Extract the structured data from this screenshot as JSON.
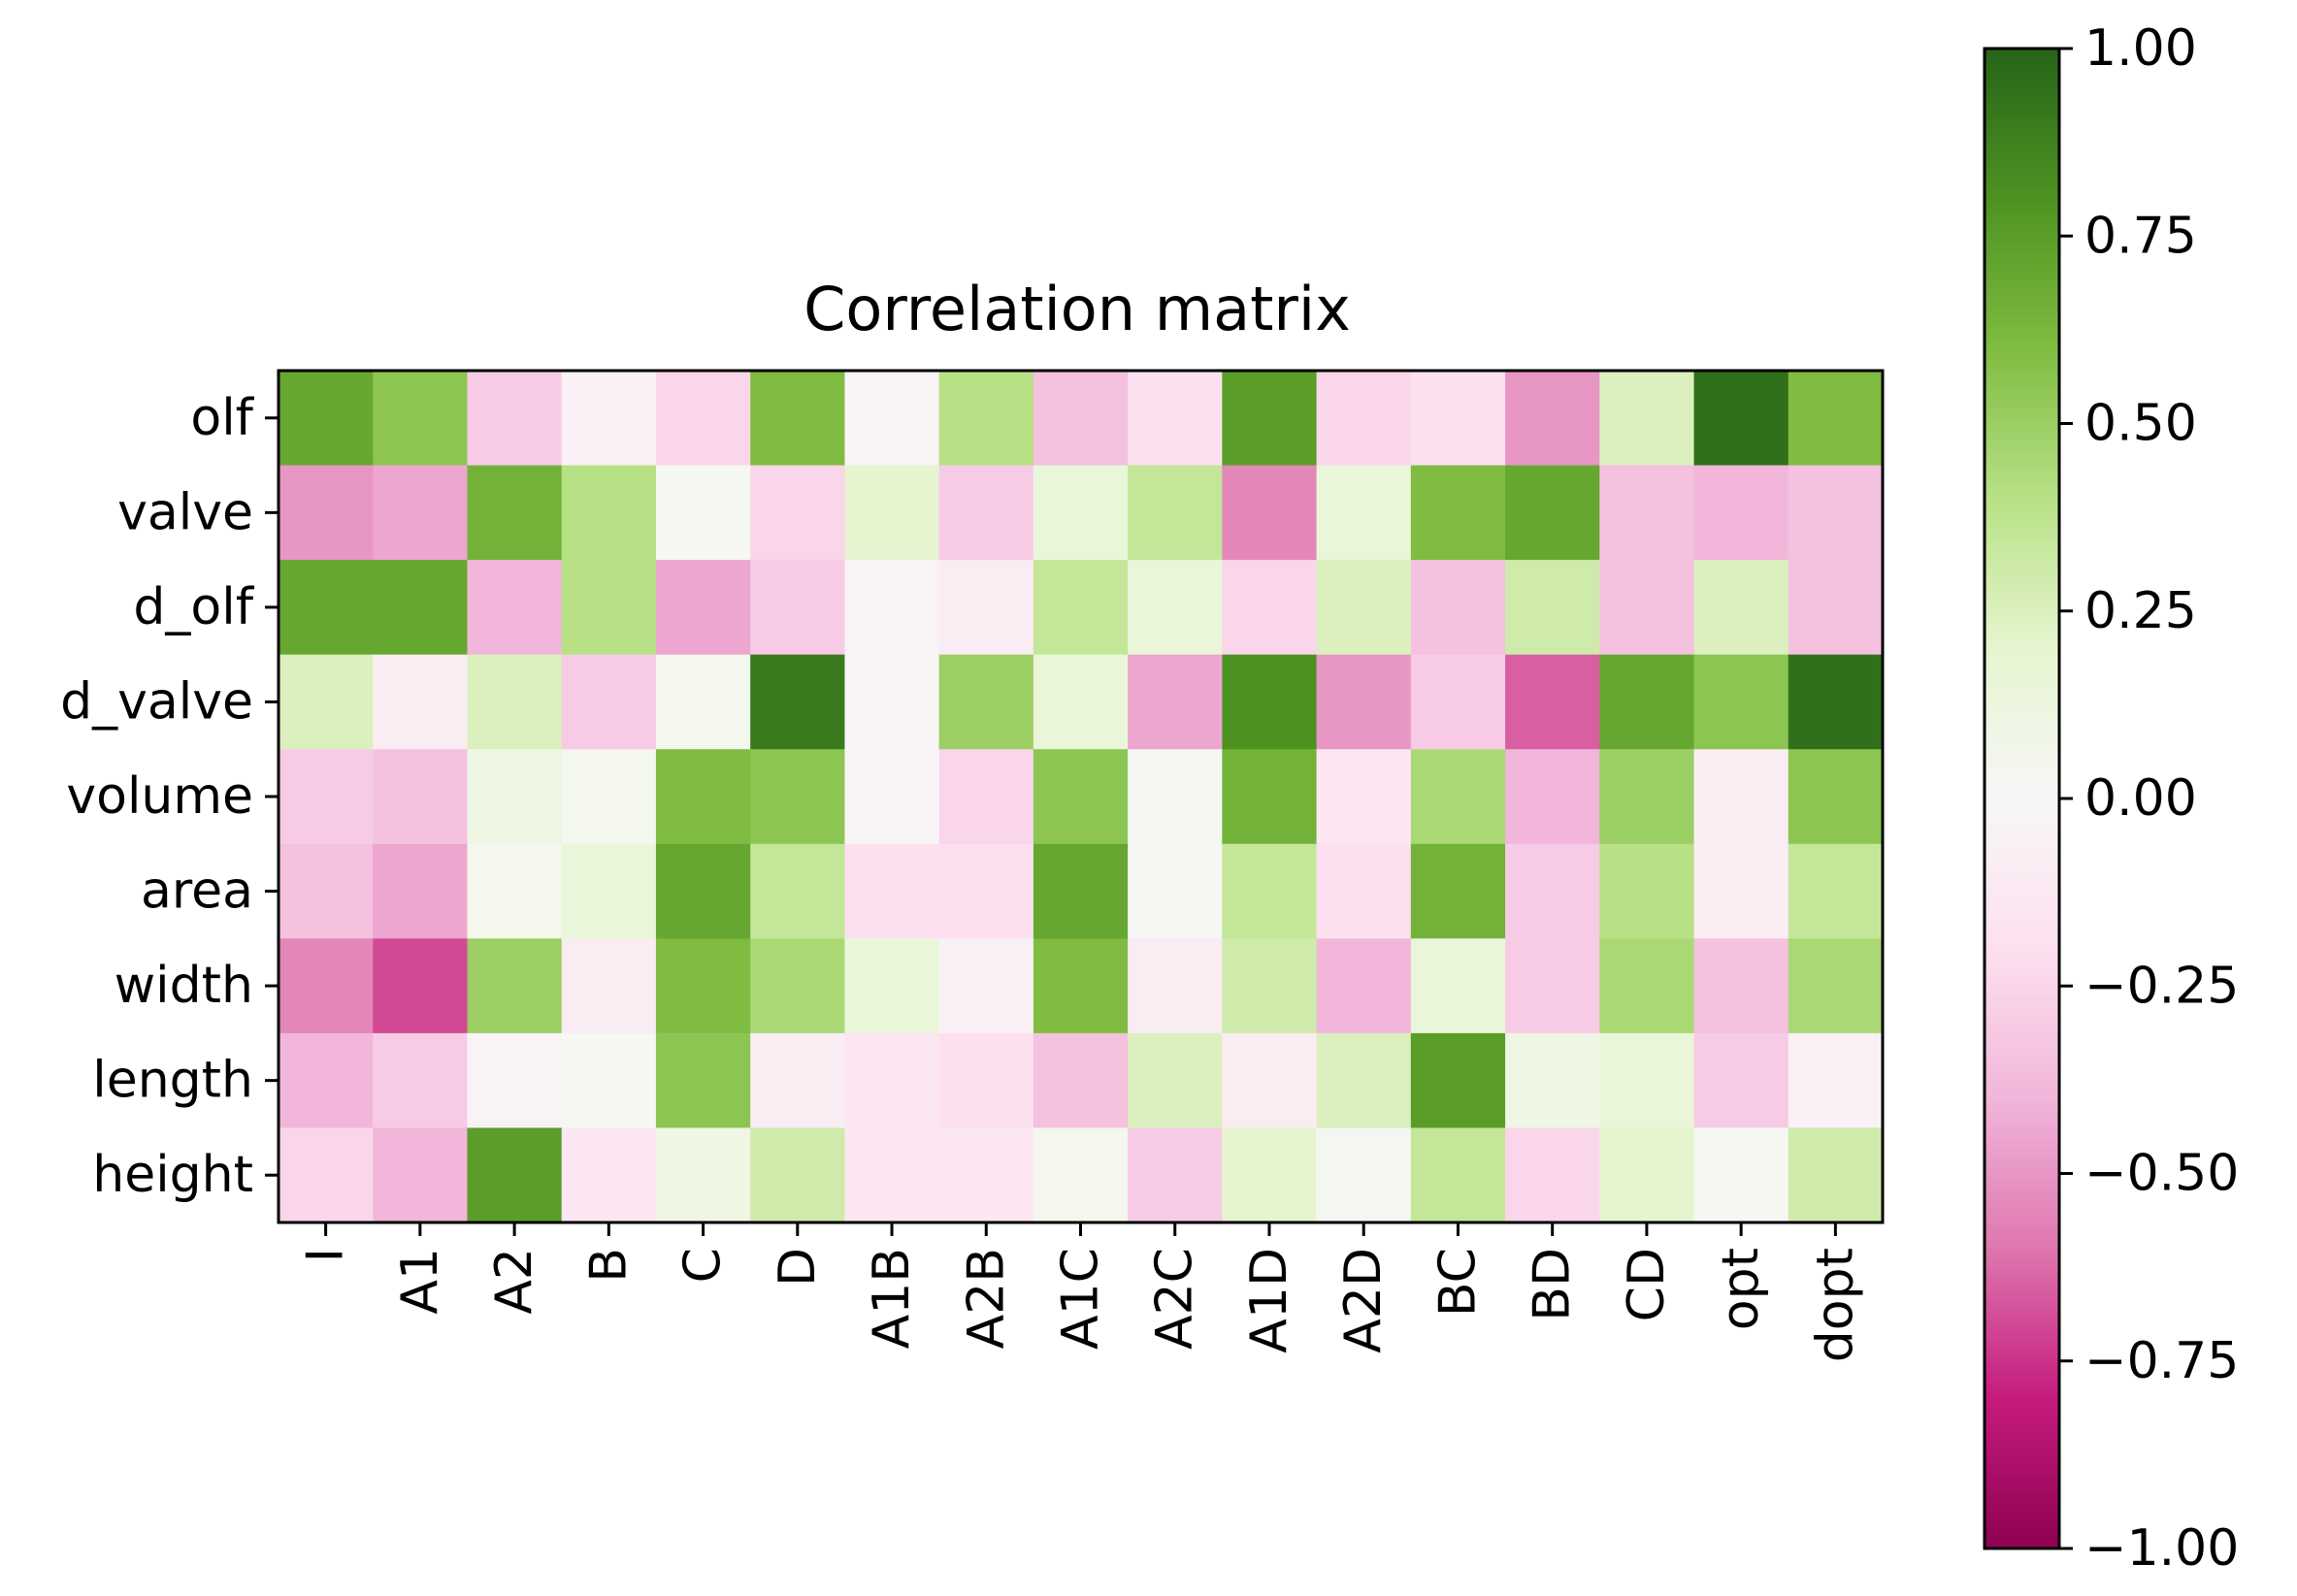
{
  "chart_data": {
    "type": "heatmap",
    "title": "Correlation matrix",
    "xlabel": "",
    "ylabel": "",
    "colormap": {
      "name": "PiYG",
      "stops": [
        [
          "#8e0152",
          -1.0
        ],
        [
          "#c51b7d",
          -0.8
        ],
        [
          "#de77ae",
          -0.6
        ],
        [
          "#f1b6da",
          -0.4
        ],
        [
          "#fde0ef",
          -0.2
        ],
        [
          "#f7f7f7",
          0.0
        ],
        [
          "#e6f5d0",
          0.2
        ],
        [
          "#b8e186",
          0.4
        ],
        [
          "#7fbc41",
          0.6
        ],
        [
          "#4d9221",
          0.8
        ],
        [
          "#276419",
          1.0
        ]
      ]
    },
    "colorbar": {
      "range": [
        -1.0,
        1.0
      ],
      "ticks": [
        "1.00",
        "0.75",
        "0.50",
        "0.25",
        "0.00",
        "−0.25",
        "−0.50",
        "−0.75",
        "−1.00"
      ],
      "tick_values": [
        1.0,
        0.75,
        0.5,
        0.25,
        0.0,
        -0.25,
        -0.5,
        -0.75,
        -1.0
      ]
    },
    "x_categories": [
      "I",
      "A1",
      "A2",
      "B",
      "C",
      "D",
      "A1B",
      "A2B",
      "A1C",
      "A2C",
      "A1D",
      "A2D",
      "BC",
      "BD",
      "CD",
      "opt",
      "dopt"
    ],
    "y_categories": [
      "olf",
      "valve",
      "d_olf",
      "d_valve",
      "volume",
      "area",
      "width",
      "length",
      "height"
    ],
    "values": [
      [
        0.7,
        0.55,
        -0.3,
        -0.05,
        -0.25,
        0.6,
        -0.03,
        0.4,
        -0.35,
        -0.2,
        0.75,
        -0.25,
        -0.2,
        -0.5,
        0.25,
        0.95,
        0.6
      ],
      [
        -0.5,
        -0.45,
        0.65,
        0.4,
        0.02,
        -0.25,
        0.2,
        -0.3,
        0.15,
        0.35,
        -0.55,
        0.15,
        0.6,
        0.7,
        -0.35,
        -0.4,
        -0.35
      ],
      [
        0.7,
        0.7,
        -0.4,
        0.4,
        -0.45,
        -0.3,
        -0.03,
        -0.1,
        0.35,
        0.15,
        -0.25,
        0.25,
        -0.35,
        0.3,
        -0.35,
        0.25,
        -0.35
      ],
      [
        0.25,
        -0.1,
        0.25,
        -0.3,
        0.05,
        0.9,
        -0.03,
        0.5,
        0.15,
        -0.45,
        0.8,
        -0.5,
        -0.3,
        -0.65,
        0.7,
        0.55,
        0.95
      ],
      [
        -0.3,
        -0.35,
        0.1,
        0.05,
        0.6,
        0.55,
        -0.03,
        -0.25,
        0.55,
        0.02,
        0.65,
        -0.15,
        0.45,
        -0.4,
        0.5,
        -0.1,
        0.55
      ],
      [
        -0.35,
        -0.45,
        0.05,
        0.15,
        0.7,
        0.35,
        -0.2,
        -0.2,
        0.7,
        0.02,
        0.35,
        -0.2,
        0.65,
        -0.3,
        0.4,
        -0.1,
        0.35
      ],
      [
        -0.55,
        -0.7,
        0.5,
        -0.1,
        0.6,
        0.45,
        0.15,
        -0.05,
        0.6,
        -0.1,
        0.3,
        -0.4,
        0.15,
        -0.3,
        0.45,
        -0.35,
        0.45
      ],
      [
        -0.4,
        -0.3,
        -0.03,
        0.02,
        0.55,
        -0.1,
        -0.15,
        -0.2,
        -0.35,
        0.25,
        -0.1,
        0.25,
        0.75,
        0.1,
        0.15,
        -0.3,
        -0.05
      ],
      [
        -0.25,
        -0.4,
        0.75,
        -0.15,
        0.1,
        0.3,
        -0.15,
        -0.15,
        0.05,
        -0.3,
        0.2,
        0.03,
        0.35,
        -0.25,
        0.2,
        0.02,
        0.3
      ]
    ]
  }
}
